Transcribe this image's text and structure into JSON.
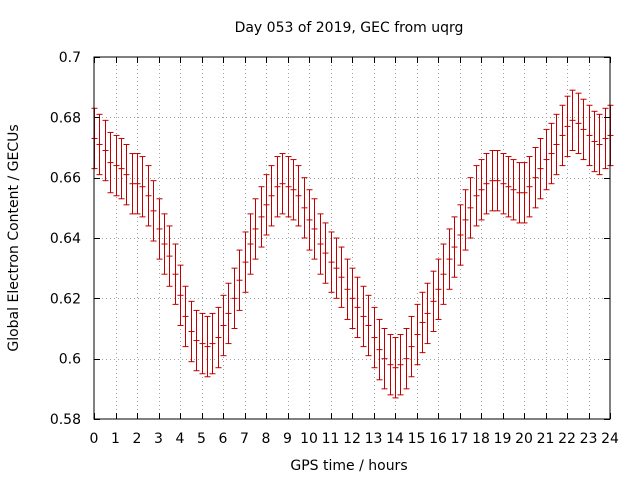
{
  "chart_data": {
    "type": "errorbar",
    "title": "Day 053 of 2019, GEC from uqrg",
    "xlabel": "GPS time / hours",
    "ylabel": "Global Electron Content / GECUs",
    "xlim": [
      0,
      24
    ],
    "ylim": [
      0.58,
      0.7
    ],
    "xticks": [
      0,
      1,
      2,
      3,
      4,
      5,
      6,
      7,
      8,
      9,
      10,
      11,
      12,
      13,
      14,
      15,
      16,
      17,
      18,
      19,
      20,
      21,
      22,
      23,
      24
    ],
    "xtick_labels": [
      "0",
      "1",
      "2",
      "3",
      "4",
      "5",
      "6",
      "7",
      "8",
      "9",
      "10",
      "11",
      "12",
      "13",
      "14",
      "15",
      "16",
      "17",
      "18",
      "19",
      "20",
      "21",
      "22",
      "23",
      "24"
    ],
    "yticks": [
      0.58,
      0.6,
      0.62,
      0.64,
      0.66,
      0.68,
      0.7
    ],
    "ytick_labels": [
      "0.58",
      "0.6",
      "0.62",
      "0.64",
      "0.66",
      "0.68",
      "0.7"
    ],
    "grid": true,
    "color": "#c00000",
    "series": [
      {
        "name": "GEC",
        "x": [
          0,
          0.25,
          0.5,
          0.75,
          1,
          1.25,
          1.5,
          1.75,
          2,
          2.25,
          2.5,
          2.75,
          3,
          3.25,
          3.5,
          3.75,
          4,
          4.25,
          4.5,
          4.75,
          5,
          5.25,
          5.5,
          5.75,
          6,
          6.25,
          6.5,
          6.75,
          7,
          7.25,
          7.5,
          7.75,
          8,
          8.25,
          8.5,
          8.75,
          9,
          9.25,
          9.5,
          9.75,
          10,
          10.25,
          10.5,
          10.75,
          11,
          11.25,
          11.5,
          11.75,
          12,
          12.25,
          12.5,
          12.75,
          13,
          13.25,
          13.5,
          13.75,
          14,
          14.25,
          14.5,
          14.75,
          15,
          15.25,
          15.5,
          15.75,
          16,
          16.25,
          16.5,
          16.75,
          17,
          17.25,
          17.5,
          17.75,
          18,
          18.25,
          18.5,
          18.75,
          19,
          19.25,
          19.5,
          19.75,
          20,
          20.25,
          20.5,
          20.75,
          21,
          21.25,
          21.5,
          21.75,
          22,
          22.25,
          22.5,
          22.75,
          23,
          23.25,
          23.5,
          23.75,
          24
        ],
        "values": [
          0.673,
          0.671,
          0.669,
          0.665,
          0.664,
          0.663,
          0.661,
          0.658,
          0.658,
          0.657,
          0.654,
          0.649,
          0.643,
          0.638,
          0.634,
          0.628,
          0.621,
          0.614,
          0.609,
          0.606,
          0.605,
          0.604,
          0.605,
          0.607,
          0.611,
          0.615,
          0.62,
          0.626,
          0.632,
          0.638,
          0.643,
          0.647,
          0.651,
          0.654,
          0.657,
          0.658,
          0.657,
          0.656,
          0.654,
          0.65,
          0.646,
          0.643,
          0.638,
          0.635,
          0.632,
          0.63,
          0.627,
          0.623,
          0.62,
          0.617,
          0.614,
          0.611,
          0.607,
          0.603,
          0.6,
          0.598,
          0.597,
          0.598,
          0.6,
          0.604,
          0.608,
          0.612,
          0.615,
          0.619,
          0.623,
          0.628,
          0.633,
          0.637,
          0.641,
          0.646,
          0.65,
          0.654,
          0.656,
          0.658,
          0.659,
          0.659,
          0.658,
          0.657,
          0.656,
          0.655,
          0.655,
          0.657,
          0.66,
          0.663,
          0.666,
          0.668,
          0.671,
          0.674,
          0.677,
          0.679,
          0.678,
          0.676,
          0.674,
          0.672,
          0.671,
          0.673,
          0.674
        ],
        "error": 0.01
      }
    ]
  }
}
